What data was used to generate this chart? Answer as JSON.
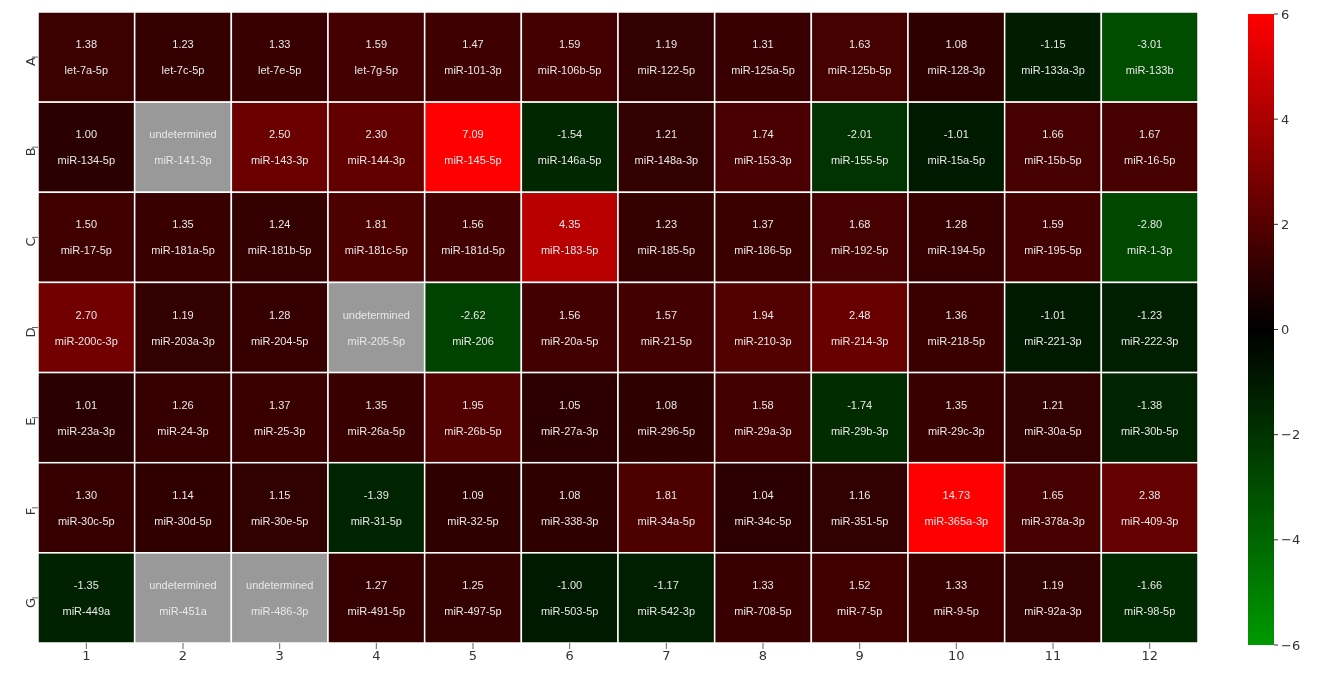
{
  "chart_data": {
    "type": "heatmap",
    "categories": [
      "1",
      "2",
      "3",
      "4",
      "5",
      "6",
      "7",
      "8",
      "9",
      "10",
      "11",
      "12"
    ],
    "y_categories": [
      "A",
      "B",
      "C",
      "D",
      "E",
      "F",
      "G"
    ],
    "cells": [
      [
        1.38,
        1.23,
        1.33,
        1.59,
        1.47,
        1.59,
        1.19,
        1.31,
        1.63,
        1.08,
        -1.15,
        -3.01
      ],
      [
        1.0,
        null,
        2.5,
        2.3,
        7.09,
        -1.54,
        1.21,
        1.74,
        -2.01,
        -1.01,
        1.66,
        1.67
      ],
      [
        1.5,
        1.35,
        1.24,
        1.81,
        1.56,
        4.35,
        1.23,
        1.37,
        1.68,
        1.28,
        1.59,
        -2.8
      ],
      [
        2.7,
        1.19,
        1.28,
        null,
        -2.62,
        1.56,
        1.57,
        1.94,
        2.48,
        1.36,
        -1.01,
        -1.23
      ],
      [
        1.01,
        1.26,
        1.37,
        1.35,
        1.95,
        1.05,
        1.08,
        1.58,
        -1.74,
        1.35,
        1.21,
        -1.38
      ],
      [
        1.3,
        1.14,
        1.15,
        -1.39,
        1.09,
        1.08,
        1.81,
        1.04,
        1.16,
        14.73,
        1.65,
        2.38
      ],
      [
        -1.35,
        null,
        null,
        1.27,
        1.25,
        -1.0,
        -1.17,
        1.33,
        1.52,
        1.33,
        1.19,
        -1.66
      ]
    ],
    "cell_labels": [
      [
        "1.38\nlet-7a-5p",
        "1.23\nlet-7c-5p",
        "1.33\nlet-7e-5p",
        "1.59\nlet-7g-5p",
        "1.47\nmiR-101-3p",
        "1.59\nmiR-106b-5p",
        "1.19\nmiR-122-5p",
        "1.31\nmiR-125a-5p",
        "1.63\nmiR-125b-5p",
        "1.08\nmiR-128-3p",
        "-1.15\nmiR-133a-3p",
        "-3.01\nmiR-133b"
      ],
      [
        "1.00\nmiR-134-5p",
        "undetermined\nmiR-141-3p",
        "2.50\nmiR-143-3p",
        "2.30\nmiR-144-3p",
        "7.09\nmiR-145-5p",
        "-1.54\nmiR-146a-5p",
        "1.21\nmiR-148a-3p",
        "1.74\nmiR-153-3p",
        "-2.01\nmiR-155-5p",
        "-1.01\nmiR-15a-5p",
        "1.66\nmiR-15b-5p",
        "1.67\nmiR-16-5p"
      ],
      [
        "1.50\nmiR-17-5p",
        "1.35\nmiR-181a-5p",
        "1.24\nmiR-181b-5p",
        "1.81\nmiR-181c-5p",
        "1.56\nmiR-181d-5p",
        "4.35\nmiR-183-5p",
        "1.23\nmiR-185-5p",
        "1.37\nmiR-186-5p",
        "1.68\nmiR-192-5p",
        "1.28\nmiR-194-5p",
        "1.59\nmiR-195-5p",
        "-2.80\nmiR-1-3p"
      ],
      [
        "2.70\nmiR-200c-3p",
        "1.19\nmiR-203a-3p",
        "1.28\nmiR-204-5p",
        "undetermined\nmiR-205-5p",
        "-2.62\nmiR-206",
        "1.56\nmiR-20a-5p",
        "1.57\nmiR-21-5p",
        "1.94\nmiR-210-3p",
        "2.48\nmiR-214-3p",
        "1.36\nmiR-218-5p",
        "-1.01\nmiR-221-3p",
        "-1.23\nmiR-222-3p"
      ],
      [
        "1.01\nmiR-23a-3p",
        "1.26\nmiR-24-3p",
        "1.37\nmiR-25-3p",
        "1.35\nmiR-26a-5p",
        "1.95\nmiR-26b-5p",
        "1.05\nmiR-27a-3p",
        "1.08\nmiR-296-5p",
        "1.58\nmiR-29a-3p",
        "-1.74\nmiR-29b-3p",
        "1.35\nmiR-29c-3p",
        "1.21\nmiR-30a-5p",
        "-1.38\nmiR-30b-5p"
      ],
      [
        "1.30\nmiR-30c-5p",
        "1.14\nmiR-30d-5p",
        "1.15\nmiR-30e-5p",
        "-1.39\nmiR-31-5p",
        "1.09\nmiR-32-5p",
        "1.08\nmiR-338-3p",
        "1.81\nmiR-34a-5p",
        "1.04\nmiR-34c-5p",
        "1.16\nmiR-351-5p",
        "14.73\nmiR-365a-3p",
        "1.65\nmiR-378a-3p",
        "2.38\nmiR-409-3p"
      ],
      [
        "-1.35\nmiR-449a",
        "undetermined\nmiR-451a",
        "undetermined\nmiR-486-3p",
        "1.27\nmiR-491-5p",
        "1.25\nmiR-497-5p",
        "-1.00\nmiR-503-5p",
        "-1.17\nmiR-542-3p",
        "1.33\nmiR-708-5p",
        "1.52\nmiR-7-5p",
        "1.33\nmiR-9-5p",
        "1.19\nmiR-92a-3p",
        "-1.66\nmiR-98-5p"
      ]
    ],
    "clim": [
      -6,
      6
    ],
    "cticks": [
      {
        "value": -6,
        "label": "−6"
      },
      {
        "value": -4,
        "label": "−4"
      },
      {
        "value": -2,
        "label": "−2"
      },
      0,
      2,
      4,
      6
    ]
  }
}
